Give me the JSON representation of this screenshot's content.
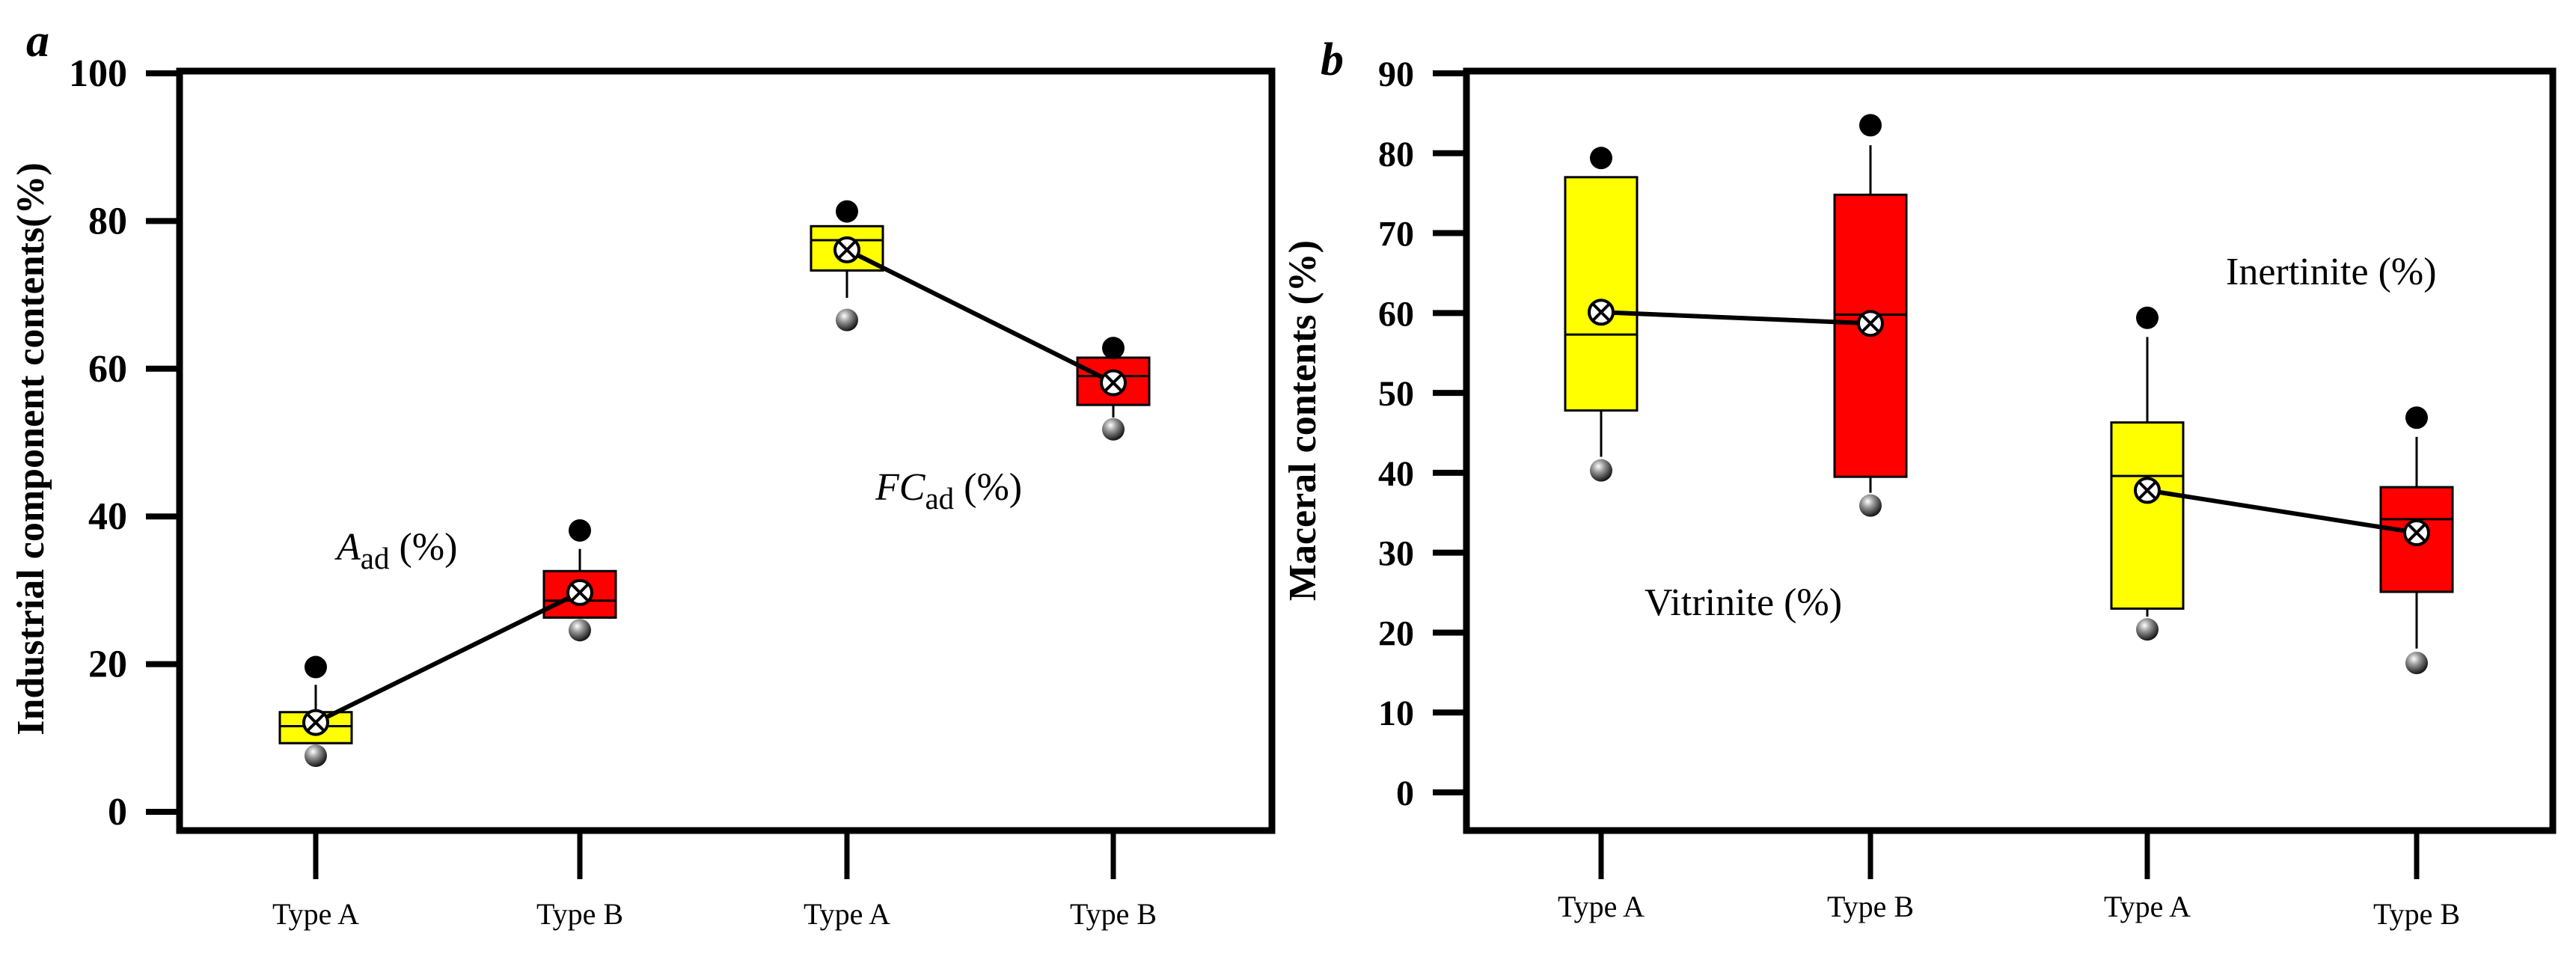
{
  "colors": {
    "typeA": "#ffff00",
    "typeB": "#ff0000",
    "axis": "#000000"
  },
  "chart_data": [
    {
      "panel_label": "a",
      "type": "box",
      "ylabel": "Industrial component contents(%)",
      "ylim": [
        0,
        100
      ],
      "yticks": [
        "0",
        "20",
        "40",
        "60",
        "80",
        "100"
      ],
      "categories": [
        "Type A",
        "Type B",
        "Type A",
        "Type B"
      ],
      "groups": [
        {
          "label_main": "A",
          "label_sub": "ad",
          "label_suffix": " (%)",
          "label_italic": true,
          "boxes": [
            {
              "category": "Type A",
              "color": "typeA",
              "q1": 9.3,
              "median": 11.6,
              "q3": 13.5,
              "whisker_low": 9.3,
              "whisker_high": 17.2,
              "mean": 12.1,
              "outlier_low": 7.6,
              "outlier_high": 19.6
            },
            {
              "category": "Type B",
              "color": "typeB",
              "q1": 26.3,
              "median": 28.6,
              "q3": 32.6,
              "whisker_low": 26.3,
              "whisker_high": 35.6,
              "mean": 29.7,
              "outlier_low": 24.6,
              "outlier_high": 38.1
            }
          ]
        },
        {
          "label_main": "FC",
          "label_sub": "ad",
          "label_suffix": " (%)",
          "label_italic": true,
          "boxes": [
            {
              "category": "Type A",
              "color": "typeA",
              "q1": 73.3,
              "median": 77.4,
              "q3": 79.3,
              "whisker_low": 69.6,
              "whisker_high": 79.3,
              "mean": 76.1,
              "outlier_low": 66.6,
              "outlier_high": 81.3
            },
            {
              "category": "Type B",
              "color": "typeB",
              "q1": 55.1,
              "median": 59.0,
              "q3": 61.5,
              "whisker_low": 53.4,
              "whisker_high": 61.5,
              "mean": 58.1,
              "outlier_low": 51.8,
              "outlier_high": 62.8
            }
          ]
        }
      ]
    },
    {
      "panel_label": "b",
      "type": "box",
      "ylabel": "Maceral contents (%)",
      "ylim": [
        0,
        90
      ],
      "yticks": [
        "0",
        "10",
        "20",
        "30",
        "40",
        "50",
        "60",
        "70",
        "80",
        "90"
      ],
      "categories": [
        "Type A",
        "Type B",
        "Type A",
        "Type B"
      ],
      "groups": [
        {
          "label_main": "Vitrinite (%)",
          "label_sub": "",
          "label_suffix": "",
          "label_italic": false,
          "boxes": [
            {
              "category": "Type A",
              "color": "typeA",
              "q1": 47.8,
              "median": 57.3,
              "q3": 77.0,
              "whisker_low": 42.0,
              "whisker_high": 77.0,
              "mean": 60.1,
              "outlier_low": 40.3,
              "outlier_high": 79.4
            },
            {
              "category": "Type B",
              "color": "typeB",
              "q1": 39.5,
              "median": 59.8,
              "q3": 74.8,
              "whisker_low": 37.5,
              "whisker_high": 81.0,
              "mean": 58.7,
              "outlier_low": 35.9,
              "outlier_high": 83.5
            }
          ]
        },
        {
          "label_main": "Inertinite (%)",
          "label_sub": "",
          "label_suffix": "",
          "label_italic": false,
          "boxes": [
            {
              "category": "Type A",
              "color": "typeA",
              "q1": 23.0,
              "median": 39.6,
              "q3": 46.3,
              "whisker_low": 22.0,
              "whisker_high": 57.0,
              "mean": 37.8,
              "outlier_low": 20.4,
              "outlier_high": 59.4
            },
            {
              "category": "Type B",
              "color": "typeB",
              "q1": 25.1,
              "median": 34.2,
              "q3": 38.2,
              "whisker_low": 18.0,
              "whisker_high": 44.5,
              "mean": 32.5,
              "outlier_low": 16.2,
              "outlier_high": 46.9
            }
          ]
        }
      ]
    }
  ]
}
